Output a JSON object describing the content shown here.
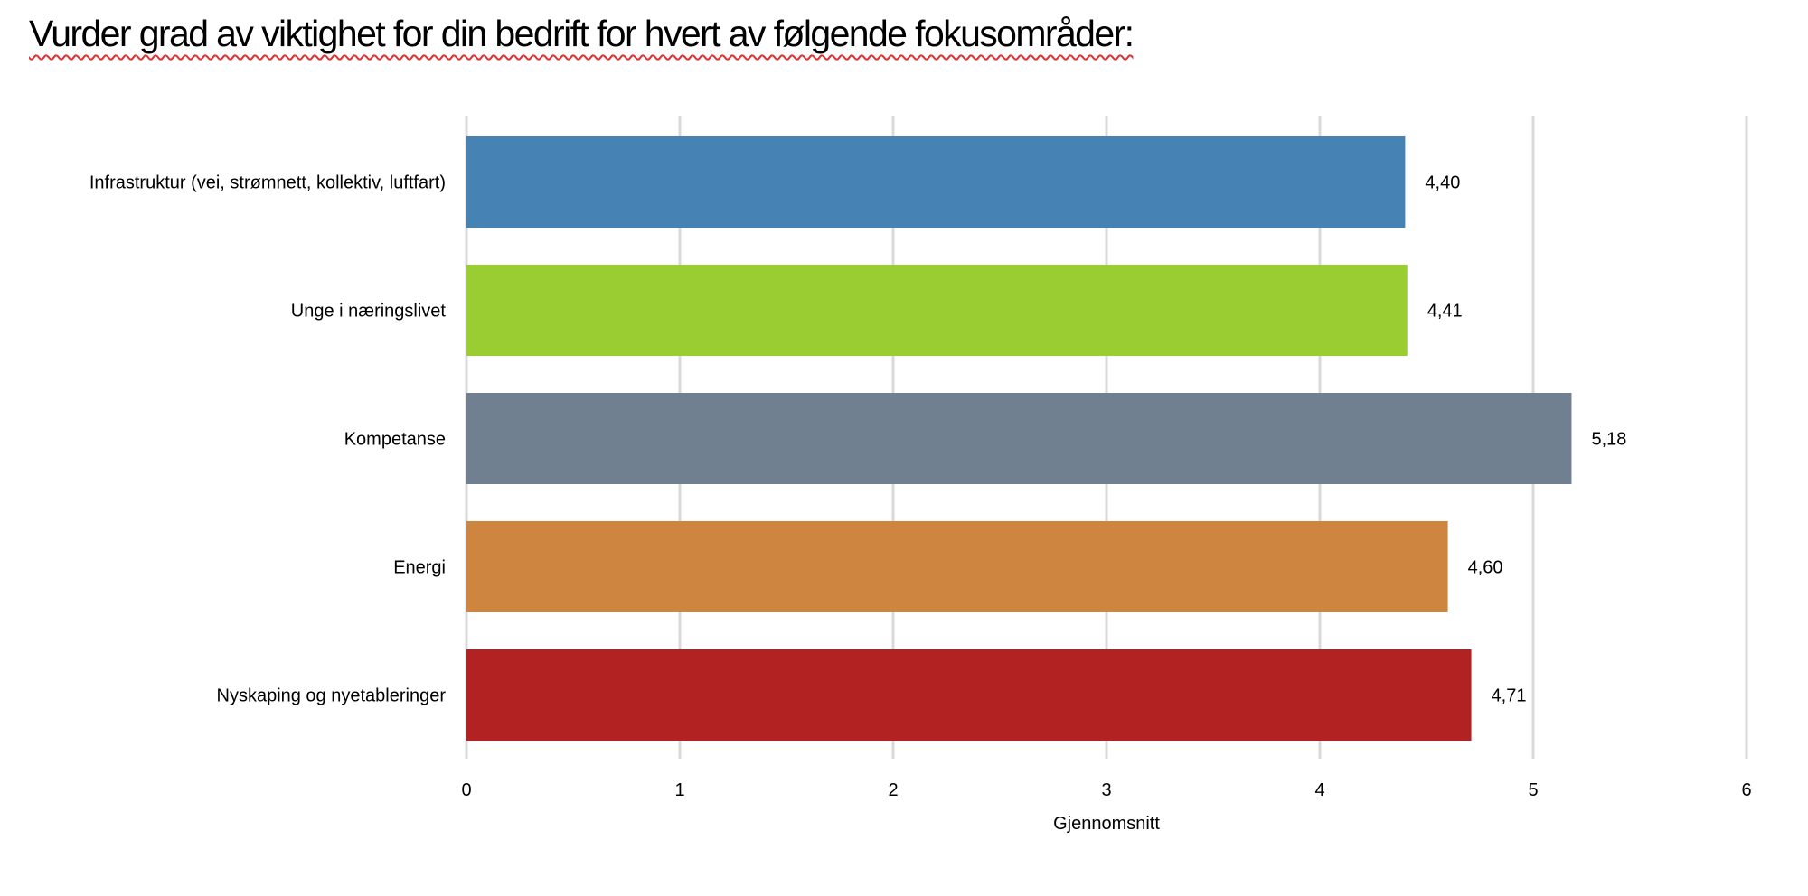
{
  "chart_data": {
    "type": "bar",
    "orientation": "horizontal",
    "title": "Vurder grad av viktighet for din bedrift for hvert av følgende fokusområder:",
    "categories": [
      "Infrastruktur (vei, strømnett, kollektiv, luftfart)",
      "Unge i næringslivet",
      "Kompetanse",
      "Energi",
      "Nyskaping og nyetableringer"
    ],
    "values": [
      4.4,
      4.41,
      5.18,
      4.6,
      4.71
    ],
    "value_labels": [
      "4,40",
      "4,41",
      "5,18",
      "4,60",
      "4,71"
    ],
    "colors": [
      "#4682B4",
      "#9ACD32",
      "#708090",
      "#CD853F",
      "#B22222"
    ],
    "xlabel": "Gjennomsnitt",
    "ylabel": "",
    "xlim": [
      0,
      6
    ],
    "xticks": [
      0,
      1,
      2,
      3,
      4,
      5,
      6
    ],
    "xtick_labels": [
      "0",
      "1",
      "2",
      "3",
      "4",
      "5",
      "6"
    ],
    "grid": true,
    "gridline_color": "#d9d9d9",
    "legend": "none"
  }
}
